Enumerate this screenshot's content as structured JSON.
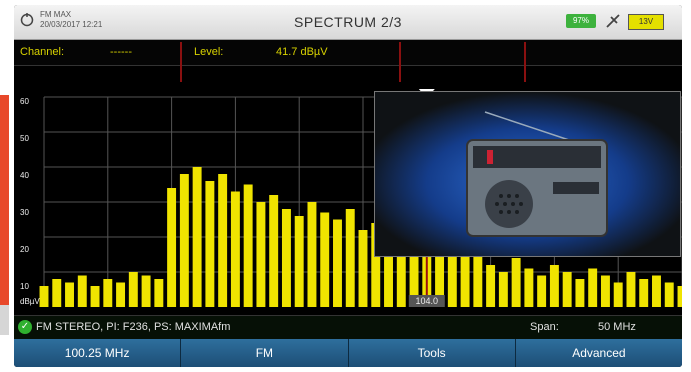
{
  "header": {
    "meta_line1": "FM MAX",
    "meta_line2": "20/03/2017 12:21",
    "title": "SPECTRUM 2/3",
    "battery": "97%",
    "power": "13V"
  },
  "info": {
    "channel_label": "Channel:",
    "channel_value": "------",
    "level_label": "Level:",
    "level_value": "41.7 dBµV"
  },
  "plot": {
    "y_ticks": [
      "60",
      "50",
      "40",
      "30",
      "20",
      "10",
      "dBµV"
    ],
    "marker_label": "104.0"
  },
  "status": {
    "text": "FM STEREO, PI: F236, PS: MAXIMAfm",
    "span_label": "Span:",
    "span_value": "50 MHz"
  },
  "softkeys": [
    "100.25 MHz",
    "FM",
    "Tools",
    "Advanced"
  ],
  "colors": {
    "trace": "#f0e400",
    "marker": "#9a1010",
    "softkey": "#2a6794"
  },
  "chart_data": {
    "type": "area",
    "x": [
      0,
      1,
      2,
      3,
      4,
      5,
      6,
      7,
      8,
      9,
      10,
      11,
      12,
      13,
      14,
      15,
      16,
      17,
      18,
      19,
      20,
      21,
      22,
      23,
      24,
      25,
      26,
      27,
      28,
      29,
      30,
      31,
      32,
      33,
      34,
      35,
      36,
      37,
      38,
      39,
      40,
      41,
      42,
      43,
      44,
      45,
      46,
      47,
      48,
      49,
      50
    ],
    "values": [
      6,
      8,
      7,
      9,
      6,
      8,
      7,
      10,
      9,
      8,
      34,
      38,
      40,
      36,
      38,
      33,
      35,
      30,
      32,
      28,
      26,
      30,
      27,
      25,
      28,
      22,
      24,
      26,
      20,
      22,
      35,
      28,
      18,
      20,
      16,
      12,
      10,
      14,
      11,
      9,
      12,
      10,
      8,
      11,
      9,
      7,
      10,
      8,
      9,
      7,
      6
    ],
    "ylim": [
      0,
      60
    ],
    "y_ticks": [
      60,
      50,
      40,
      30,
      20,
      10
    ],
    "marker_index": 30
  }
}
